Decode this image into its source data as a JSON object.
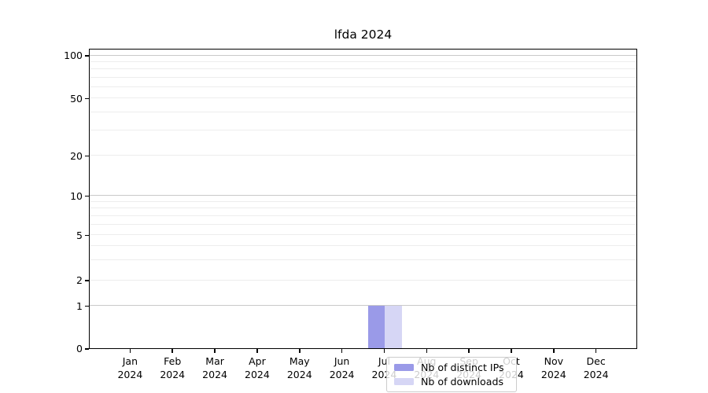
{
  "title": "lfda 2024",
  "y_axis": {
    "tick_labels": [
      "0",
      "1",
      "2",
      "5",
      "10",
      "20",
      "50",
      "100"
    ]
  },
  "x_axis": {
    "months": [
      "Jan",
      "Feb",
      "Mar",
      "Apr",
      "May",
      "Jun",
      "Jul",
      "Aug",
      "Sep",
      "Oct",
      "Nov",
      "Dec"
    ],
    "year": "2024"
  },
  "legend": {
    "items": [
      {
        "label": "Nb of distinct IPs",
        "color": "#9a9ae8"
      },
      {
        "label": "Nb of downloads",
        "color": "#d6d6f5"
      }
    ]
  },
  "colors": {
    "grid_major": "#c9c9c9",
    "grid_minor": "#ededed",
    "spine": "#000000"
  },
  "chart_data": {
    "type": "bar",
    "title": "lfda 2024",
    "categories": [
      "Jan 2024",
      "Feb 2024",
      "Mar 2024",
      "Apr 2024",
      "May 2024",
      "Jun 2024",
      "Jul 2024",
      "Aug 2024",
      "Sep 2024",
      "Oct 2024",
      "Nov 2024",
      "Dec 2024"
    ],
    "series": [
      {
        "name": "Nb of distinct IPs",
        "color": "#9a9ae8",
        "values": [
          0,
          0,
          0,
          0,
          0,
          0,
          1,
          0,
          0,
          0,
          0,
          0
        ]
      },
      {
        "name": "Nb of downloads",
        "color": "#d6d6f5",
        "values": [
          0,
          0,
          0,
          0,
          0,
          0,
          1,
          0,
          0,
          0,
          0,
          0
        ]
      }
    ],
    "yscale": "symlog",
    "y_tick_values": [
      0,
      1,
      2,
      5,
      10,
      20,
      50,
      100
    ],
    "ylim": [
      0,
      112
    ],
    "grid": true,
    "legend_position": "lower center"
  }
}
